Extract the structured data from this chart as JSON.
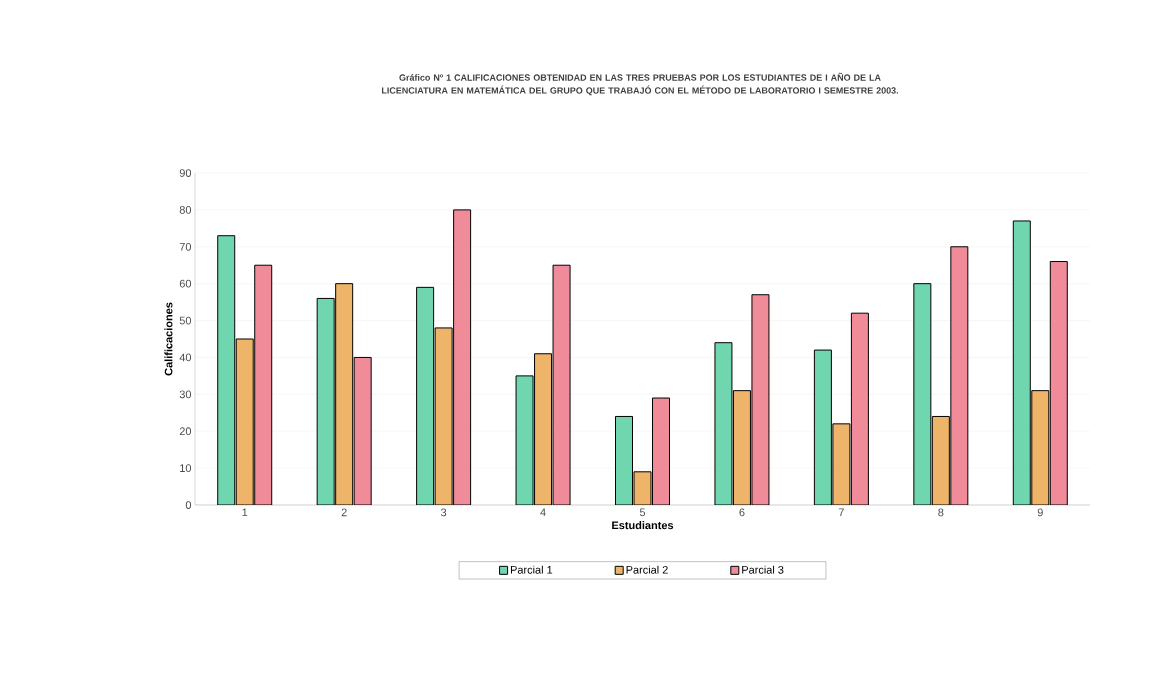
{
  "chart_data": {
    "type": "bar",
    "title": "Gráfico Nº 1   CALIFICACIONES OBTENIDAD EN LAS TRES PRUEBAS POR LOS ESTUDIANTES DE I AÑO DE LA LICENCIATURA EN MATEMÁTICA DEL GRUPO QUE TRABAJÓ CON EL MÉTODO DE LABORATORIO  I SEMESTRE 2003.",
    "xlabel": "Estudiantes",
    "ylabel": "Calificaciones",
    "categories": [
      "1",
      "2",
      "3",
      "4",
      "5",
      "6",
      "7",
      "8",
      "9"
    ],
    "series": [
      {
        "name": "Parcial 1",
        "color": "#6fd6b0",
        "values": [
          73,
          56,
          59,
          35,
          24,
          44,
          42,
          60,
          77
        ]
      },
      {
        "name": "Parcial 2",
        "color": "#eeb469",
        "values": [
          45,
          60,
          48,
          41,
          9,
          31,
          22,
          24,
          31
        ]
      },
      {
        "name": "Parcial 3",
        "color": "#f08c9a",
        "values": [
          65,
          40,
          80,
          65,
          29,
          57,
          52,
          70,
          66
        ]
      }
    ],
    "ylim": [
      0,
      90
    ],
    "yticks": [
      0,
      10,
      20,
      30,
      40,
      50,
      60,
      70,
      80,
      90
    ],
    "grid": "y",
    "legend": "bottom"
  }
}
